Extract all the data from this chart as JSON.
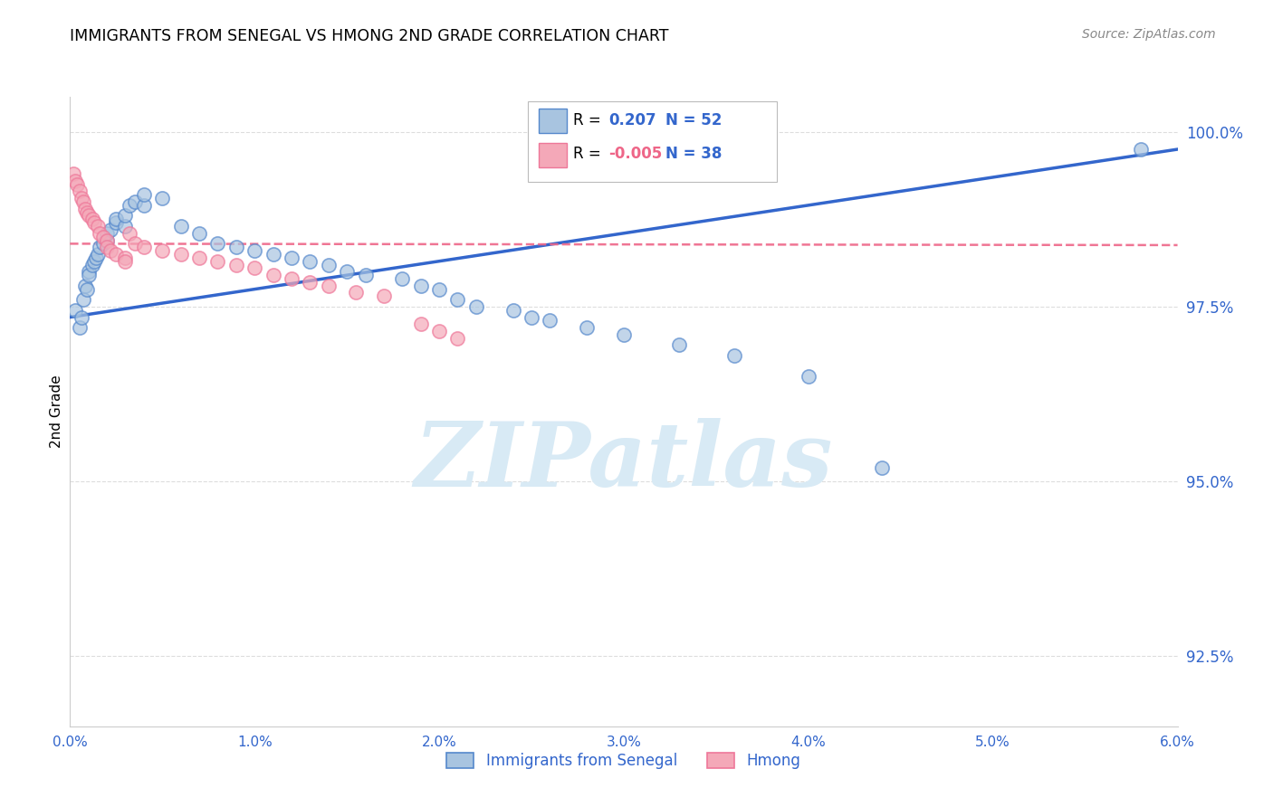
{
  "title": "IMMIGRANTS FROM SENEGAL VS HMONG 2ND GRADE CORRELATION CHART",
  "source": "Source: ZipAtlas.com",
  "ylabel": "2nd Grade",
  "xmin": 0.0,
  "xmax": 0.06,
  "ymin": 0.915,
  "ymax": 1.005,
  "yticks": [
    1.0,
    0.975,
    0.95,
    0.925
  ],
  "ytick_labels": [
    "100.0%",
    "97.5%",
    "95.0%",
    "92.5%"
  ],
  "xtick_positions": [
    0.0,
    0.01,
    0.02,
    0.03,
    0.04,
    0.05,
    0.06
  ],
  "xtick_labels": [
    "0.0%",
    "1.0%",
    "2.0%",
    "3.0%",
    "4.0%",
    "5.0%",
    "6.0%"
  ],
  "legend_r1": "R =  0.207",
  "legend_n1": "N = 52",
  "legend_r2": "R = -0.005",
  "legend_n2": "N = 38",
  "color_blue_fill": "#A8C4E0",
  "color_blue_edge": "#5588CC",
  "color_pink_fill": "#F4A8B8",
  "color_pink_edge": "#EE7799",
  "color_blue_line": "#3366CC",
  "color_pink_line": "#EE6688",
  "color_axis_label": "#3366CC",
  "color_grid": "#DDDDDD",
  "watermark_color": "#D8EAF5",
  "blue_scatter_x": [
    0.0003,
    0.0005,
    0.0006,
    0.0007,
    0.0008,
    0.0009,
    0.001,
    0.001,
    0.0012,
    0.0013,
    0.0014,
    0.0015,
    0.0016,
    0.0018,
    0.002,
    0.002,
    0.0022,
    0.0025,
    0.0025,
    0.003,
    0.003,
    0.0032,
    0.0035,
    0.004,
    0.004,
    0.005,
    0.006,
    0.007,
    0.008,
    0.009,
    0.01,
    0.011,
    0.012,
    0.013,
    0.014,
    0.015,
    0.016,
    0.018,
    0.019,
    0.02,
    0.021,
    0.022,
    0.024,
    0.025,
    0.026,
    0.028,
    0.03,
    0.033,
    0.036,
    0.04,
    0.044,
    0.058
  ],
  "blue_scatter_y": [
    0.9745,
    0.972,
    0.9735,
    0.976,
    0.978,
    0.9775,
    0.98,
    0.9795,
    0.981,
    0.9815,
    0.982,
    0.9825,
    0.9835,
    0.984,
    0.9845,
    0.9855,
    0.986,
    0.987,
    0.9875,
    0.9865,
    0.988,
    0.9895,
    0.99,
    0.9895,
    0.991,
    0.9905,
    0.9865,
    0.9855,
    0.984,
    0.9835,
    0.983,
    0.9825,
    0.982,
    0.9815,
    0.981,
    0.98,
    0.9795,
    0.979,
    0.978,
    0.9775,
    0.976,
    0.975,
    0.9745,
    0.9735,
    0.973,
    0.972,
    0.971,
    0.9695,
    0.968,
    0.965,
    0.952,
    0.9975
  ],
  "pink_scatter_x": [
    0.0002,
    0.0003,
    0.0004,
    0.0005,
    0.0006,
    0.0007,
    0.0008,
    0.0009,
    0.001,
    0.0012,
    0.0013,
    0.0015,
    0.0016,
    0.0018,
    0.002,
    0.002,
    0.0022,
    0.0025,
    0.003,
    0.003,
    0.0032,
    0.0035,
    0.004,
    0.005,
    0.006,
    0.007,
    0.008,
    0.009,
    0.01,
    0.011,
    0.012,
    0.013,
    0.014,
    0.0155,
    0.017,
    0.019,
    0.021,
    0.02
  ],
  "pink_scatter_y": [
    0.994,
    0.993,
    0.9925,
    0.9915,
    0.9905,
    0.99,
    0.989,
    0.9885,
    0.988,
    0.9875,
    0.987,
    0.9865,
    0.9855,
    0.985,
    0.9845,
    0.9835,
    0.983,
    0.9825,
    0.982,
    0.9815,
    0.9855,
    0.984,
    0.9835,
    0.983,
    0.9825,
    0.982,
    0.9815,
    0.981,
    0.9805,
    0.9795,
    0.979,
    0.9785,
    0.978,
    0.977,
    0.9765,
    0.9725,
    0.9705,
    0.9715
  ],
  "blue_line_x": [
    0.0,
    0.06
  ],
  "blue_line_y": [
    0.9735,
    0.9975
  ],
  "pink_line_x": [
    0.0,
    0.06
  ],
  "pink_line_y": [
    0.984,
    0.9838
  ]
}
